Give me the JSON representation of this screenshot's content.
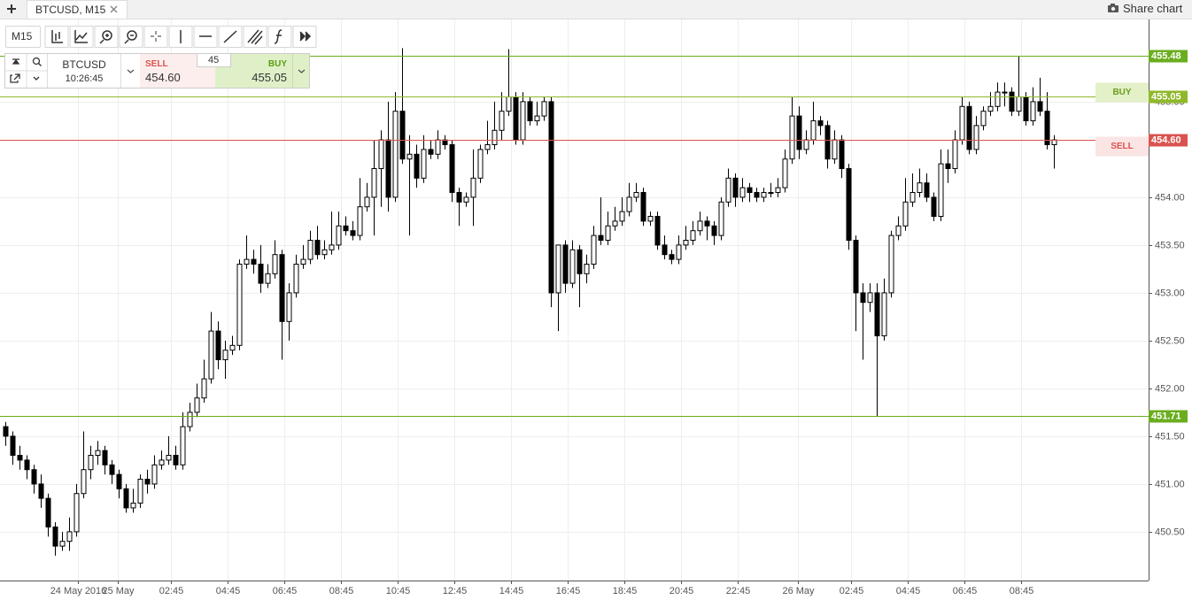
{
  "ui": {
    "tab": "BTCUSD, M15",
    "share": "Share chart",
    "interval": "M15",
    "symbol": "BTCUSD",
    "clock": "10:26:45",
    "sell_label": "SELL",
    "sell_price": "454.60",
    "quantity": "45",
    "buy_label": "BUY",
    "buy_price": "455.05"
  },
  "chart_data": {
    "type": "candlestick",
    "up_color": "#ffffff",
    "down_color": "#000000",
    "grid": true,
    "ylim": [
      449.99,
      455.86
    ],
    "yticks": [
      {
        "value": 455,
        "label": "455.00"
      },
      {
        "value": 454,
        "label": "454.00"
      },
      {
        "value": 453.5,
        "label": "453.50"
      },
      {
        "value": 453,
        "label": "453.00"
      },
      {
        "value": 452.5,
        "label": "452.50"
      },
      {
        "value": 452,
        "label": "452.00"
      },
      {
        "value": 451.5,
        "label": "451.50"
      },
      {
        "value": 451,
        "label": "451.00"
      },
      {
        "value": 450.5,
        "label": "450.50"
      }
    ],
    "xlim": [
      -0.75,
      161.375
    ],
    "xticks": [
      {
        "value": 10.25,
        "label": "24 May 2016"
      },
      {
        "value": 15.875,
        "label": "25 May"
      },
      {
        "value": 23.375,
        "label": "02:45"
      },
      {
        "value": 31.375,
        "label": "04:45"
      },
      {
        "value": 39.375,
        "label": "06:45"
      },
      {
        "value": 47.375,
        "label": "08:45"
      },
      {
        "value": 55.375,
        "label": "10:45"
      },
      {
        "value": 63.375,
        "label": "12:45"
      },
      {
        "value": 71.375,
        "label": "14:45"
      },
      {
        "value": 79.375,
        "label": "16:45"
      },
      {
        "value": 87.375,
        "label": "18:45"
      },
      {
        "value": 95.375,
        "label": "20:45"
      },
      {
        "value": 103.375,
        "label": "22:45"
      },
      {
        "value": 111.875,
        "label": "26 May"
      },
      {
        "value": 119.375,
        "label": "02:45"
      },
      {
        "value": 127.375,
        "label": "04:45"
      },
      {
        "value": 135.375,
        "label": "06:45"
      },
      {
        "value": 143.375,
        "label": "08:45"
      }
    ],
    "levels": [
      {
        "value": 455.48,
        "color": "#6aad1e"
      },
      {
        "value": 455.05,
        "color": "#8fb82a",
        "tag": "BUY"
      },
      {
        "value": 454.6,
        "label": "454.60",
        "color": "#d9534f",
        "tag": "SELL"
      },
      {
        "value": 451.71,
        "color": "#6aad1e"
      }
    ],
    "ohlc": [
      [
        451.6,
        451.65,
        451.4,
        451.5
      ],
      [
        451.5,
        451.55,
        451.2,
        451.3
      ],
      [
        451.3,
        451.4,
        451.15,
        451.25
      ],
      [
        451.25,
        451.3,
        451.05,
        451.15
      ],
      [
        451.15,
        451.2,
        450.9,
        451.0
      ],
      [
        451.0,
        451.1,
        450.75,
        450.85
      ],
      [
        450.85,
        450.9,
        450.45,
        450.55
      ],
      [
        450.55,
        450.6,
        450.25,
        450.35
      ],
      [
        450.35,
        450.5,
        450.3,
        450.4
      ],
      [
        450.4,
        450.65,
        450.3,
        450.5
      ],
      [
        450.5,
        451.0,
        450.45,
        450.9
      ],
      [
        450.9,
        451.55,
        450.85,
        451.15
      ],
      [
        451.15,
        451.4,
        451.05,
        451.3
      ],
      [
        451.3,
        451.45,
        451.2,
        451.35
      ],
      [
        451.35,
        451.4,
        451.1,
        451.2
      ],
      [
        451.2,
        451.25,
        451.0,
        451.1
      ],
      [
        451.1,
        451.15,
        450.85,
        450.95
      ],
      [
        450.95,
        451.0,
        450.7,
        450.75
      ],
      [
        450.75,
        450.95,
        450.7,
        450.8
      ],
      [
        450.8,
        451.1,
        450.75,
        451.05
      ],
      [
        451.05,
        451.15,
        450.9,
        451.0
      ],
      [
        451.0,
        451.3,
        450.95,
        451.2
      ],
      [
        451.2,
        451.35,
        451.15,
        451.25
      ],
      [
        451.25,
        451.5,
        451.2,
        451.3
      ],
      [
        451.3,
        451.4,
        451.15,
        451.2
      ],
      [
        451.2,
        451.75,
        451.15,
        451.6
      ],
      [
        451.6,
        451.85,
        451.55,
        451.75
      ],
      [
        451.75,
        452.05,
        451.7,
        451.9
      ],
      [
        451.9,
        452.3,
        451.85,
        452.1
      ],
      [
        452.1,
        452.8,
        452.05,
        452.6
      ],
      [
        452.6,
        452.7,
        452.2,
        452.3
      ],
      [
        452.3,
        452.5,
        452.1,
        452.4
      ],
      [
        452.4,
        452.55,
        452.35,
        452.45
      ],
      [
        452.45,
        453.35,
        452.4,
        453.3
      ],
      [
        453.3,
        453.6,
        453.25,
        453.35
      ],
      [
        453.35,
        453.45,
        453.2,
        453.3
      ],
      [
        453.3,
        453.5,
        453.0,
        453.1
      ],
      [
        453.1,
        453.3,
        453.05,
        453.2
      ],
      [
        453.2,
        453.55,
        453.15,
        453.4
      ],
      [
        453.4,
        453.45,
        452.3,
        452.7
      ],
      [
        452.7,
        453.1,
        452.5,
        453.0
      ],
      [
        453.0,
        453.4,
        452.95,
        453.3
      ],
      [
        453.3,
        453.5,
        453.25,
        453.35
      ],
      [
        453.35,
        453.65,
        453.3,
        453.55
      ],
      [
        453.55,
        453.7,
        453.35,
        453.4
      ],
      [
        453.4,
        453.55,
        453.35,
        453.45
      ],
      [
        453.45,
        453.85,
        453.4,
        453.5
      ],
      [
        453.5,
        453.85,
        453.45,
        453.7
      ],
      [
        453.7,
        453.8,
        453.6,
        453.65
      ],
      [
        453.65,
        453.75,
        453.55,
        453.6
      ],
      [
        453.6,
        454.2,
        453.55,
        453.9
      ],
      [
        453.9,
        454.15,
        453.85,
        454.0
      ],
      [
        454.0,
        454.6,
        453.6,
        454.3
      ],
      [
        454.3,
        454.7,
        453.9,
        454.6
      ],
      [
        454.6,
        455.0,
        453.85,
        454.0
      ],
      [
        454.0,
        455.1,
        453.95,
        454.9
      ],
      [
        454.9,
        455.56,
        454.35,
        454.4
      ],
      [
        454.4,
        454.65,
        453.6,
        454.45
      ],
      [
        454.45,
        454.55,
        454.1,
        454.2
      ],
      [
        454.2,
        454.65,
        454.15,
        454.5
      ],
      [
        454.5,
        454.6,
        454.4,
        454.45
      ],
      [
        454.45,
        454.7,
        454.4,
        454.6
      ],
      [
        454.6,
        454.65,
        454.5,
        454.55
      ],
      [
        454.55,
        454.6,
        453.95,
        454.05
      ],
      [
        454.05,
        454.1,
        453.7,
        453.95
      ],
      [
        453.95,
        454.05,
        453.9,
        454.0
      ],
      [
        454.0,
        454.5,
        453.7,
        454.2
      ],
      [
        454.2,
        454.55,
        454.15,
        454.5
      ],
      [
        454.5,
        454.8,
        454.45,
        454.55
      ],
      [
        454.55,
        455.0,
        454.5,
        454.7
      ],
      [
        454.7,
        455.1,
        454.6,
        454.9
      ],
      [
        454.9,
        455.55,
        454.85,
        455.05
      ],
      [
        455.05,
        455.1,
        454.55,
        454.6
      ],
      [
        454.6,
        455.1,
        454.55,
        455.0
      ],
      [
        455.0,
        455.05,
        454.75,
        454.8
      ],
      [
        454.8,
        455.0,
        454.75,
        454.85
      ],
      [
        454.85,
        455.05,
        454.8,
        455.0
      ],
      [
        455.0,
        455.05,
        452.85,
        453.0
      ],
      [
        453.0,
        453.5,
        452.6,
        453.5
      ],
      [
        453.5,
        453.55,
        453.0,
        453.1
      ],
      [
        453.1,
        453.55,
        453.05,
        453.45
      ],
      [
        453.45,
        453.5,
        452.85,
        453.2
      ],
      [
        453.2,
        453.4,
        453.1,
        453.3
      ],
      [
        453.3,
        453.7,
        453.25,
        453.6
      ],
      [
        453.6,
        454.0,
        453.5,
        453.55
      ],
      [
        453.55,
        453.85,
        453.5,
        453.7
      ],
      [
        453.7,
        453.9,
        453.65,
        453.75
      ],
      [
        453.75,
        454.0,
        453.7,
        453.85
      ],
      [
        453.85,
        454.15,
        453.8,
        454.0
      ],
      [
        454.0,
        454.15,
        453.95,
        454.05
      ],
      [
        454.05,
        454.1,
        453.7,
        453.75
      ],
      [
        453.75,
        453.85,
        453.7,
        453.8
      ],
      [
        453.8,
        453.85,
        453.45,
        453.5
      ],
      [
        453.5,
        453.6,
        453.35,
        453.4
      ],
      [
        453.4,
        453.45,
        453.3,
        453.35
      ],
      [
        453.35,
        453.6,
        453.3,
        453.5
      ],
      [
        453.5,
        453.7,
        453.45,
        453.55
      ],
      [
        453.55,
        453.75,
        453.5,
        453.65
      ],
      [
        453.65,
        453.85,
        453.6,
        453.75
      ],
      [
        453.75,
        453.8,
        453.55,
        453.7
      ],
      [
        453.7,
        453.75,
        453.5,
        453.6
      ],
      [
        453.6,
        454.0,
        453.55,
        453.95
      ],
      [
        453.95,
        454.3,
        453.9,
        454.2
      ],
      [
        454.2,
        454.25,
        453.9,
        454.0
      ],
      [
        454.0,
        454.2,
        453.95,
        454.1
      ],
      [
        454.1,
        454.15,
        453.95,
        454.05
      ],
      [
        454.05,
        454.1,
        453.95,
        454.0
      ],
      [
        454.0,
        454.1,
        453.95,
        454.05
      ],
      [
        454.05,
        454.15,
        454.0,
        454.05
      ],
      [
        454.05,
        454.2,
        454.0,
        454.1
      ],
      [
        454.1,
        454.5,
        454.05,
        454.4
      ],
      [
        454.4,
        455.05,
        454.35,
        454.85
      ],
      [
        454.85,
        454.95,
        454.4,
        454.5
      ],
      [
        454.5,
        454.7,
        454.45,
        454.6
      ],
      [
        454.6,
        455.0,
        454.55,
        454.8
      ],
      [
        454.8,
        454.85,
        454.65,
        454.75
      ],
      [
        454.75,
        454.8,
        454.3,
        454.4
      ],
      [
        454.4,
        454.7,
        454.35,
        454.6
      ],
      [
        454.6,
        454.65,
        454.2,
        454.3
      ],
      [
        454.3,
        454.35,
        453.45,
        453.55
      ],
      [
        453.55,
        453.6,
        452.6,
        453.0
      ],
      [
        453.0,
        453.1,
        452.3,
        452.9
      ],
      [
        452.9,
        453.1,
        452.8,
        453.0
      ],
      [
        453.0,
        453.1,
        451.71,
        452.55
      ],
      [
        452.55,
        453.15,
        452.5,
        453.0
      ],
      [
        453.0,
        453.65,
        452.95,
        453.6
      ],
      [
        453.6,
        453.8,
        453.55,
        453.7
      ],
      [
        453.7,
        454.2,
        453.65,
        453.95
      ],
      [
        453.95,
        454.25,
        453.9,
        454.05
      ],
      [
        454.05,
        454.3,
        454.0,
        454.15
      ],
      [
        454.15,
        454.25,
        453.95,
        454.0
      ],
      [
        454.0,
        454.05,
        453.75,
        453.8
      ],
      [
        453.8,
        454.5,
        453.75,
        454.35
      ],
      [
        454.35,
        454.5,
        454.15,
        454.3
      ],
      [
        454.3,
        454.7,
        454.25,
        454.6
      ],
      [
        454.6,
        455.05,
        454.55,
        454.95
      ],
      [
        454.95,
        455.0,
        454.45,
        454.5
      ],
      [
        454.5,
        454.85,
        454.45,
        454.75
      ],
      [
        454.75,
        454.95,
        454.7,
        454.9
      ],
      [
        454.9,
        455.1,
        454.85,
        454.95
      ],
      [
        454.95,
        455.2,
        454.9,
        455.1
      ],
      [
        455.1,
        455.2,
        454.95,
        455.1
      ],
      [
        455.1,
        455.15,
        454.85,
        454.9
      ],
      [
        454.9,
        455.48,
        454.85,
        455.05
      ],
      [
        455.05,
        455.1,
        454.75,
        454.8
      ],
      [
        454.8,
        455.15,
        454.75,
        455.0
      ],
      [
        455.0,
        455.25,
        454.85,
        454.9
      ],
      [
        454.9,
        455.1,
        454.5,
        454.55
      ],
      [
        454.55,
        454.65,
        454.3,
        454.6
      ]
    ]
  }
}
